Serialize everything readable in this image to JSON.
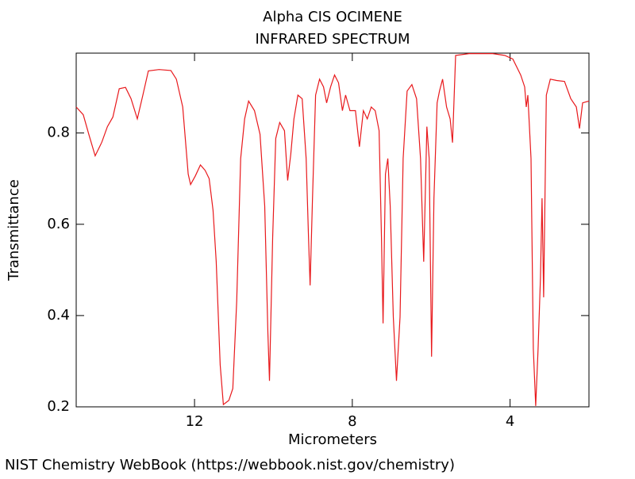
{
  "chart_data": {
    "type": "line",
    "title": "Alpha CIS OCIMENE",
    "subtitle": "INFRARED SPECTRUM",
    "x_label": "Micrometers",
    "y_label": "Transmittance",
    "source": "NIST Chemistry WebBook (https://webbook.nist.gov/chemistry)",
    "color": "#e8191c",
    "xlim": [
      15,
      2
    ],
    "ylim": [
      0.2,
      0.975
    ],
    "xticks": [
      12,
      8,
      4
    ],
    "yticks": [
      0.2,
      0.4,
      0.6,
      0.8
    ],
    "x": [
      15.0,
      14.82,
      14.68,
      14.52,
      14.35,
      14.21,
      14.07,
      13.91,
      13.75,
      13.61,
      13.45,
      13.31,
      13.17,
      12.9,
      12.6,
      12.46,
      12.3,
      12.16,
      12.1,
      11.98,
      11.85,
      11.73,
      11.63,
      11.53,
      11.45,
      11.35,
      11.27,
      11.13,
      11.03,
      10.93,
      10.83,
      10.73,
      10.63,
      10.48,
      10.34,
      10.22,
      10.14,
      10.1,
      10.02,
      9.94,
      9.84,
      9.72,
      9.64,
      9.56,
      9.48,
      9.38,
      9.27,
      9.17,
      9.11,
      9.07,
      9.01,
      8.93,
      8.83,
      8.73,
      8.65,
      8.55,
      8.45,
      8.35,
      8.25,
      8.17,
      8.06,
      7.92,
      7.82,
      7.72,
      7.62,
      7.52,
      7.42,
      7.32,
      7.26,
      7.22,
      7.16,
      7.1,
      7.04,
      6.96,
      6.88,
      6.79,
      6.71,
      6.61,
      6.49,
      6.37,
      6.27,
      6.19,
      6.11,
      6.05,
      5.99,
      5.93,
      5.85,
      5.79,
      5.71,
      5.61,
      5.52,
      5.46,
      5.38,
      5.04,
      4.44,
      4.13,
      3.93,
      3.73,
      3.63,
      3.59,
      3.55,
      3.47,
      3.41,
      3.35,
      3.29,
      3.23,
      3.19,
      3.15,
      3.08,
      2.98,
      2.82,
      2.62,
      2.46,
      2.32,
      2.24,
      2.16,
      2.0
    ],
    "values": [
      0.857,
      0.84,
      0.797,
      0.75,
      0.78,
      0.814,
      0.835,
      0.897,
      0.9,
      0.875,
      0.831,
      0.883,
      0.936,
      0.939,
      0.937,
      0.918,
      0.857,
      0.71,
      0.687,
      0.706,
      0.73,
      0.718,
      0.7,
      0.631,
      0.518,
      0.292,
      0.205,
      0.214,
      0.24,
      0.431,
      0.744,
      0.831,
      0.87,
      0.849,
      0.797,
      0.64,
      0.362,
      0.257,
      0.57,
      0.788,
      0.823,
      0.805,
      0.696,
      0.753,
      0.831,
      0.883,
      0.875,
      0.744,
      0.57,
      0.466,
      0.657,
      0.883,
      0.918,
      0.901,
      0.866,
      0.901,
      0.927,
      0.91,
      0.849,
      0.883,
      0.849,
      0.849,
      0.77,
      0.849,
      0.831,
      0.857,
      0.849,
      0.805,
      0.57,
      0.383,
      0.71,
      0.744,
      0.64,
      0.397,
      0.257,
      0.397,
      0.744,
      0.892,
      0.906,
      0.875,
      0.744,
      0.518,
      0.814,
      0.744,
      0.31,
      0.657,
      0.866,
      0.892,
      0.918,
      0.857,
      0.831,
      0.779,
      0.97,
      0.974,
      0.974,
      0.97,
      0.962,
      0.927,
      0.901,
      0.857,
      0.883,
      0.744,
      0.327,
      0.202,
      0.327,
      0.483,
      0.657,
      0.44,
      0.883,
      0.918,
      0.915,
      0.913,
      0.875,
      0.857,
      0.81,
      0.866,
      0.87
    ]
  }
}
